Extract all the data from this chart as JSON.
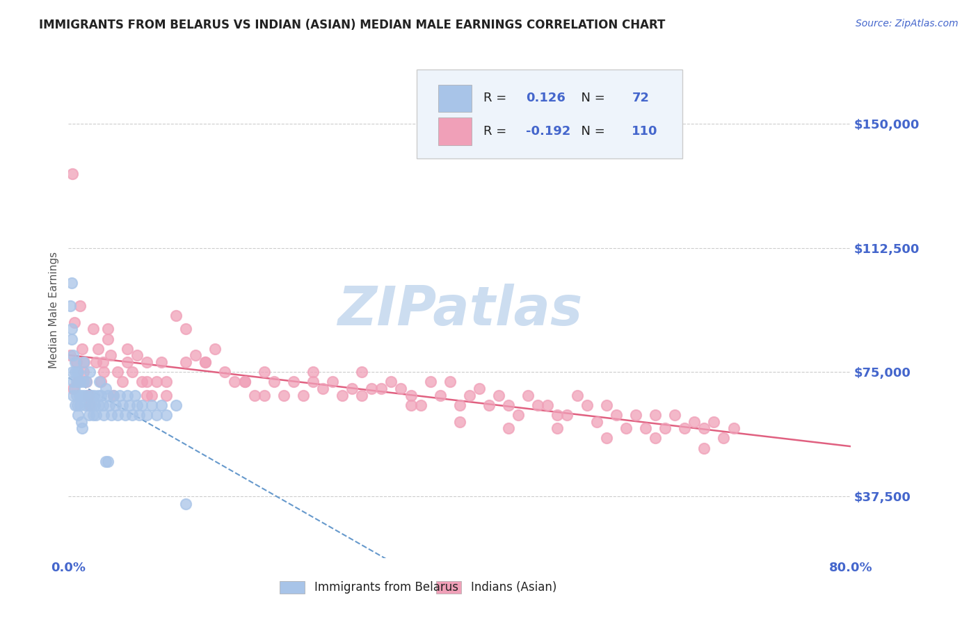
{
  "title": "IMMIGRANTS FROM BELARUS VS INDIAN (ASIAN) MEDIAN MALE EARNINGS CORRELATION CHART",
  "source_text": "Source: ZipAtlas.com",
  "ylabel": "Median Male Earnings",
  "xlim": [
    0.0,
    0.8
  ],
  "ylim": [
    18750,
    168750
  ],
  "yticks": [
    37500,
    75000,
    112500,
    150000
  ],
  "ytick_labels": [
    "$37,500",
    "$75,000",
    "$112,500",
    "$150,000"
  ],
  "xticks": [
    0.0,
    0.1,
    0.2,
    0.3,
    0.4,
    0.5,
    0.6,
    0.7,
    0.8
  ],
  "xtick_labels": [
    "0.0%",
    "",
    "",
    "",
    "",
    "",
    "",
    "",
    "80.0%"
  ],
  "color_belarus": "#a8c4e8",
  "color_indians": "#f0a0b8",
  "color_trendline_belarus": "#6699cc",
  "color_trendline_indians": "#e06080",
  "color_axis_labels": "#4466cc",
  "color_title": "#222222",
  "watermark_text": "ZIPatlas",
  "watermark_color": "#ccddf0",
  "legend_box_color": "#eef4fb",
  "legend_border_color": "#cccccc",
  "belarus_x": [
    0.002,
    0.003,
    0.003,
    0.004,
    0.005,
    0.005,
    0.006,
    0.007,
    0.007,
    0.008,
    0.008,
    0.009,
    0.01,
    0.01,
    0.011,
    0.012,
    0.012,
    0.013,
    0.014,
    0.015,
    0.015,
    0.016,
    0.017,
    0.018,
    0.019,
    0.02,
    0.021,
    0.022,
    0.023,
    0.024,
    0.025,
    0.026,
    0.027,
    0.028,
    0.03,
    0.031,
    0.032,
    0.033,
    0.035,
    0.036,
    0.038,
    0.04,
    0.042,
    0.044,
    0.046,
    0.048,
    0.05,
    0.052,
    0.055,
    0.058,
    0.06,
    0.062,
    0.065,
    0.068,
    0.07,
    0.072,
    0.075,
    0.08,
    0.085,
    0.09,
    0.095,
    0.1,
    0.11,
    0.12,
    0.003,
    0.005,
    0.007,
    0.009,
    0.011,
    0.013,
    0.038,
    0.04
  ],
  "belarus_y": [
    95000,
    102000,
    88000,
    75000,
    72000,
    68000,
    70000,
    75000,
    65000,
    72000,
    68000,
    65000,
    62000,
    75000,
    68000,
    72000,
    65000,
    60000,
    58000,
    78000,
    72000,
    68000,
    65000,
    72000,
    68000,
    65000,
    62000,
    75000,
    68000,
    65000,
    62000,
    68000,
    65000,
    62000,
    68000,
    65000,
    72000,
    68000,
    65000,
    62000,
    70000,
    68000,
    65000,
    62000,
    68000,
    65000,
    62000,
    68000,
    65000,
    62000,
    68000,
    65000,
    62000,
    68000,
    65000,
    62000,
    65000,
    62000,
    65000,
    62000,
    65000,
    62000,
    65000,
    35000,
    85000,
    80000,
    78000,
    75000,
    72000,
    68000,
    48000,
    48000
  ],
  "indians_x": [
    0.002,
    0.004,
    0.006,
    0.008,
    0.01,
    0.012,
    0.014,
    0.016,
    0.018,
    0.02,
    0.022,
    0.025,
    0.028,
    0.03,
    0.033,
    0.036,
    0.04,
    0.043,
    0.046,
    0.05,
    0.055,
    0.06,
    0.065,
    0.07,
    0.075,
    0.08,
    0.085,
    0.09,
    0.095,
    0.1,
    0.11,
    0.12,
    0.13,
    0.14,
    0.15,
    0.16,
    0.17,
    0.18,
    0.19,
    0.2,
    0.21,
    0.22,
    0.23,
    0.24,
    0.25,
    0.26,
    0.27,
    0.28,
    0.29,
    0.3,
    0.31,
    0.32,
    0.33,
    0.34,
    0.35,
    0.36,
    0.37,
    0.38,
    0.39,
    0.4,
    0.41,
    0.42,
    0.43,
    0.44,
    0.45,
    0.46,
    0.47,
    0.48,
    0.49,
    0.5,
    0.51,
    0.52,
    0.53,
    0.54,
    0.55,
    0.56,
    0.57,
    0.58,
    0.59,
    0.6,
    0.61,
    0.62,
    0.63,
    0.64,
    0.65,
    0.66,
    0.67,
    0.68,
    0.005,
    0.02,
    0.04,
    0.06,
    0.08,
    0.1,
    0.14,
    0.18,
    0.2,
    0.25,
    0.3,
    0.35,
    0.4,
    0.45,
    0.5,
    0.55,
    0.6,
    0.65,
    0.015,
    0.035,
    0.08,
    0.12
  ],
  "indians_y": [
    80000,
    135000,
    90000,
    78000,
    72000,
    95000,
    82000,
    78000,
    72000,
    68000,
    65000,
    88000,
    78000,
    82000,
    72000,
    75000,
    88000,
    80000,
    68000,
    75000,
    72000,
    82000,
    75000,
    80000,
    72000,
    78000,
    68000,
    72000,
    78000,
    72000,
    92000,
    88000,
    80000,
    78000,
    82000,
    75000,
    72000,
    72000,
    68000,
    75000,
    72000,
    68000,
    72000,
    68000,
    75000,
    70000,
    72000,
    68000,
    70000,
    75000,
    70000,
    70000,
    72000,
    70000,
    68000,
    65000,
    72000,
    68000,
    72000,
    65000,
    68000,
    70000,
    65000,
    68000,
    65000,
    62000,
    68000,
    65000,
    65000,
    62000,
    62000,
    68000,
    65000,
    60000,
    65000,
    62000,
    58000,
    62000,
    58000,
    62000,
    58000,
    62000,
    58000,
    60000,
    58000,
    60000,
    55000,
    58000,
    70000,
    68000,
    85000,
    78000,
    72000,
    68000,
    78000,
    72000,
    68000,
    72000,
    68000,
    65000,
    60000,
    58000,
    58000,
    55000,
    55000,
    52000,
    75000,
    78000,
    68000,
    78000
  ],
  "belarus_trendline_start_x": 0.0,
  "belarus_trendline_end_x": 0.8,
  "indians_trendline_start_x": 0.0,
  "indians_trendline_end_x": 0.8
}
